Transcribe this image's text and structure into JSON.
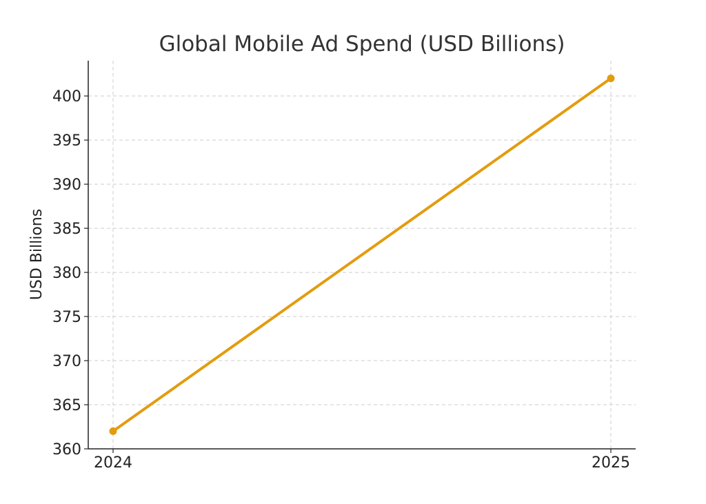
{
  "chart_data": {
    "type": "line",
    "title": "Global Mobile Ad Spend (USD Billions)",
    "xlabel": "",
    "ylabel": "USD Billions",
    "x": [
      "2024",
      "2025"
    ],
    "series": [
      {
        "values": [
          362,
          402
        ],
        "color": "#e39c0e"
      }
    ],
    "ylim": [
      360,
      404
    ],
    "yticks": [
      360,
      365,
      370,
      375,
      380,
      385,
      390,
      395,
      400
    ],
    "grid": true,
    "markers": true
  }
}
